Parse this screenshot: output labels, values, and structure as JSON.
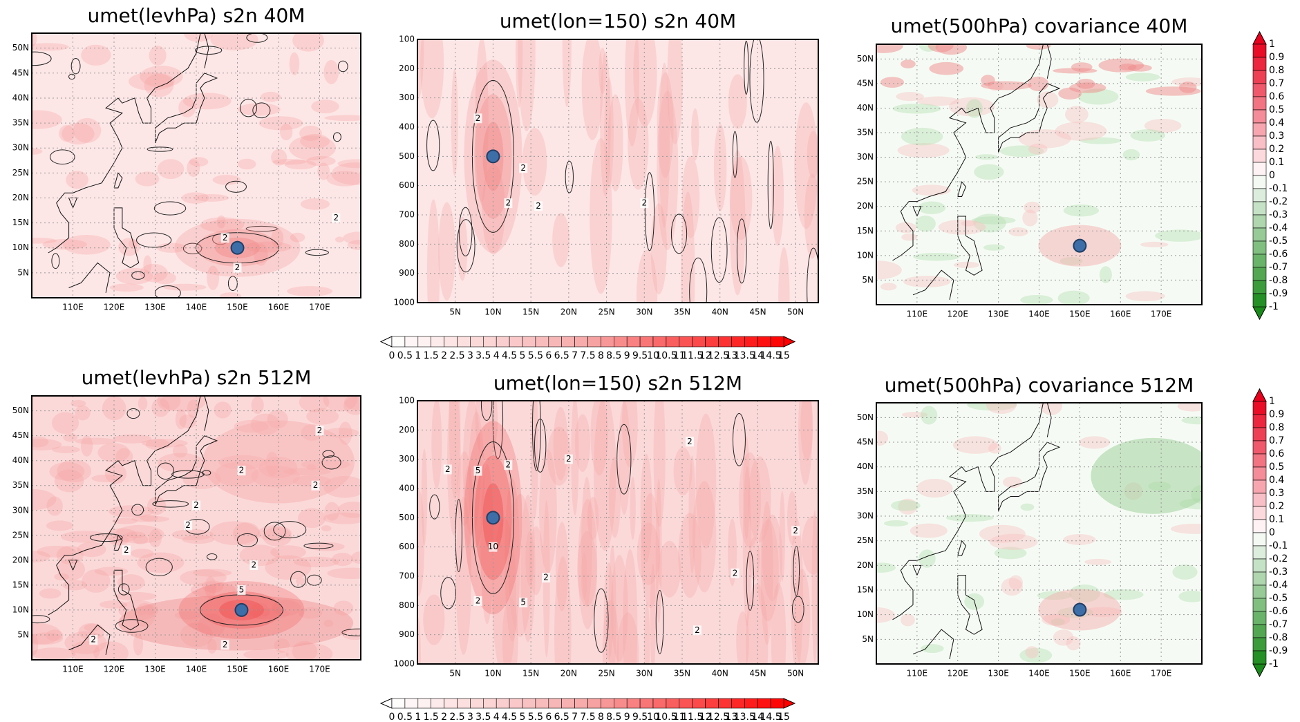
{
  "chart_data": [
    {
      "type": "map",
      "title": "umet(levhPa) s2n 40M",
      "xlim": [
        100,
        180
      ],
      "ylim": [
        0,
        53
      ],
      "xticks": [
        {
          "value": 110,
          "label": "110E"
        },
        {
          "value": 120,
          "label": "120E"
        },
        {
          "value": 130,
          "label": "130E"
        },
        {
          "value": 140,
          "label": "140E"
        },
        {
          "value": 150,
          "label": "150E"
        },
        {
          "value": 160,
          "label": "160E"
        },
        {
          "value": 170,
          "label": "170E"
        }
      ],
      "yticks": [
        {
          "value": 5,
          "label": "5N"
        },
        {
          "value": 10,
          "label": "10N"
        },
        {
          "value": 15,
          "label": "15N"
        },
        {
          "value": 20,
          "label": "20N"
        },
        {
          "value": 25,
          "label": "25N"
        },
        {
          "value": 30,
          "label": "30N"
        },
        {
          "value": 35,
          "label": "35N"
        },
        {
          "value": 40,
          "label": "40N"
        },
        {
          "value": 45,
          "label": "45N"
        },
        {
          "value": 50,
          "label": "50N"
        }
      ],
      "grid": true,
      "marker": {
        "x": 150,
        "y": 10,
        "color": "#3d6ea8"
      },
      "contour_labels": [
        {
          "label": "2",
          "x": 147,
          "y": 12
        },
        {
          "label": "2",
          "x": 150,
          "y": 6
        },
        {
          "label": "2",
          "x": 174,
          "y": 16
        }
      ]
    },
    {
      "type": "contour",
      "title": "umet(lon=150) s2n 40M",
      "xlim": [
        0,
        53
      ],
      "ylim": [
        1000,
        100
      ],
      "xticks": [
        {
          "value": 5,
          "label": "5N"
        },
        {
          "value": 10,
          "label": "10N"
        },
        {
          "value": 15,
          "label": "15N"
        },
        {
          "value": 20,
          "label": "20N"
        },
        {
          "value": 25,
          "label": "25N"
        },
        {
          "value": 30,
          "label": "30N"
        },
        {
          "value": 35,
          "label": "35N"
        },
        {
          "value": 40,
          "label": "40N"
        },
        {
          "value": 45,
          "label": "45N"
        },
        {
          "value": 50,
          "label": "50N"
        }
      ],
      "yticks": [
        100,
        200,
        300,
        400,
        500,
        600,
        700,
        800,
        900,
        1000
      ],
      "grid": true,
      "marker": {
        "x": 10,
        "y": 500,
        "color": "#3d6ea8"
      },
      "contour_labels": [
        {
          "label": "2",
          "x": 8,
          "y": 370
        },
        {
          "label": "2",
          "x": 14,
          "y": 540
        },
        {
          "label": "2",
          "x": 12,
          "y": 660
        },
        {
          "label": "2",
          "x": 16,
          "y": 670
        },
        {
          "label": "2",
          "x": 30,
          "y": 660
        }
      ]
    },
    {
      "type": "map",
      "title": "umet(500hPa) covariance 40M",
      "xlim": [
        100,
        180
      ],
      "ylim": [
        0,
        53
      ],
      "xticks": [
        {
          "value": 110,
          "label": "110E"
        },
        {
          "value": 120,
          "label": "120E"
        },
        {
          "value": 130,
          "label": "130E"
        },
        {
          "value": 140,
          "label": "140E"
        },
        {
          "value": 150,
          "label": "150E"
        },
        {
          "value": 160,
          "label": "160E"
        },
        {
          "value": 170,
          "label": "170E"
        }
      ],
      "yticks": [
        {
          "value": 5,
          "label": "5N"
        },
        {
          "value": 10,
          "label": "10N"
        },
        {
          "value": 15,
          "label": "15N"
        },
        {
          "value": 20,
          "label": "20N"
        },
        {
          "value": 25,
          "label": "25N"
        },
        {
          "value": 30,
          "label": "30N"
        },
        {
          "value": 35,
          "label": "35N"
        },
        {
          "value": 40,
          "label": "40N"
        },
        {
          "value": 45,
          "label": "45N"
        },
        {
          "value": 50,
          "label": "50N"
        }
      ],
      "grid": true,
      "marker": {
        "x": 150,
        "y": 12,
        "color": "#3d6ea8"
      }
    },
    {
      "type": "map",
      "title": "umet(levhPa) s2n 512M",
      "xlim": [
        100,
        180
      ],
      "ylim": [
        0,
        53
      ],
      "xticks": [
        {
          "value": 110,
          "label": "110E"
        },
        {
          "value": 120,
          "label": "120E"
        },
        {
          "value": 130,
          "label": "130E"
        },
        {
          "value": 140,
          "label": "140E"
        },
        {
          "value": 150,
          "label": "150E"
        },
        {
          "value": 160,
          "label": "160E"
        },
        {
          "value": 170,
          "label": "170E"
        }
      ],
      "yticks": [
        {
          "value": 5,
          "label": "5N"
        },
        {
          "value": 10,
          "label": "10N"
        },
        {
          "value": 15,
          "label": "15N"
        },
        {
          "value": 20,
          "label": "20N"
        },
        {
          "value": 25,
          "label": "25N"
        },
        {
          "value": 30,
          "label": "30N"
        },
        {
          "value": 35,
          "label": "35N"
        },
        {
          "value": 40,
          "label": "40N"
        },
        {
          "value": 45,
          "label": "45N"
        },
        {
          "value": 50,
          "label": "50N"
        }
      ],
      "grid": true,
      "marker": {
        "x": 151,
        "y": 10,
        "color": "#3d6ea8"
      },
      "contour_labels": [
        {
          "label": "2",
          "x": 170,
          "y": 46
        },
        {
          "label": "2",
          "x": 151,
          "y": 38
        },
        {
          "label": "2",
          "x": 169,
          "y": 35
        },
        {
          "label": "2",
          "x": 140,
          "y": 31
        },
        {
          "label": "2",
          "x": 138,
          "y": 27
        },
        {
          "label": "2",
          "x": 123,
          "y": 22
        },
        {
          "label": "2",
          "x": 154,
          "y": 19
        },
        {
          "label": "5",
          "x": 151,
          "y": 14
        },
        {
          "label": "2",
          "x": 115,
          "y": 4
        },
        {
          "label": "2",
          "x": 147,
          "y": 3
        }
      ]
    },
    {
      "type": "contour",
      "title": "umet(lon=150) s2n 512M",
      "xlim": [
        0,
        53
      ],
      "ylim": [
        1000,
        100
      ],
      "xticks": [
        {
          "value": 5,
          "label": "5N"
        },
        {
          "value": 10,
          "label": "10N"
        },
        {
          "value": 15,
          "label": "15N"
        },
        {
          "value": 20,
          "label": "20N"
        },
        {
          "value": 25,
          "label": "25N"
        },
        {
          "value": 30,
          "label": "30N"
        },
        {
          "value": 35,
          "label": "35N"
        },
        {
          "value": 40,
          "label": "40N"
        },
        {
          "value": 45,
          "label": "45N"
        },
        {
          "value": 50,
          "label": "50N"
        }
      ],
      "yticks": [
        100,
        200,
        300,
        400,
        500,
        600,
        700,
        800,
        900,
        1000
      ],
      "grid": true,
      "marker": {
        "x": 10,
        "y": 500,
        "color": "#3d6ea8"
      },
      "contour_labels": [
        {
          "label": "2",
          "x": 4,
          "y": 335
        },
        {
          "label": "5",
          "x": 8,
          "y": 340
        },
        {
          "label": "2",
          "x": 12,
          "y": 320
        },
        {
          "label": "2",
          "x": 20,
          "y": 300
        },
        {
          "label": "2",
          "x": 36,
          "y": 240
        },
        {
          "label": "10",
          "x": 10,
          "y": 600
        },
        {
          "label": "2",
          "x": 17,
          "y": 705
        },
        {
          "label": "5",
          "x": 14,
          "y": 790
        },
        {
          "label": "2",
          "x": 8,
          "y": 785
        },
        {
          "label": "2",
          "x": 42,
          "y": 690
        },
        {
          "label": "2",
          "x": 37,
          "y": 885
        },
        {
          "label": "2",
          "x": 50,
          "y": 545
        }
      ]
    },
    {
      "type": "map",
      "title": "umet(500hPa) covariance 512M",
      "xlim": [
        100,
        180
      ],
      "ylim": [
        0,
        53
      ],
      "xticks": [
        {
          "value": 110,
          "label": "110E"
        },
        {
          "value": 120,
          "label": "120E"
        },
        {
          "value": 130,
          "label": "130E"
        },
        {
          "value": 140,
          "label": "140E"
        },
        {
          "value": 150,
          "label": "150E"
        },
        {
          "value": 160,
          "label": "160E"
        },
        {
          "value": 170,
          "label": "170E"
        }
      ],
      "yticks": [
        {
          "value": 5,
          "label": "5N"
        },
        {
          "value": 10,
          "label": "10N"
        },
        {
          "value": 15,
          "label": "15N"
        },
        {
          "value": 20,
          "label": "20N"
        },
        {
          "value": 25,
          "label": "25N"
        },
        {
          "value": 30,
          "label": "30N"
        },
        {
          "value": 35,
          "label": "35N"
        },
        {
          "value": 40,
          "label": "40N"
        },
        {
          "value": 45,
          "label": "45N"
        },
        {
          "value": 50,
          "label": "50N"
        }
      ],
      "grid": true,
      "marker": {
        "x": 150,
        "y": 11,
        "color": "#3d6ea8"
      }
    },
    {
      "type": "colorbar",
      "orientation": "horizontal",
      "levels": [
        0,
        0.5,
        1,
        1.5,
        2,
        2.5,
        3,
        3.5,
        4,
        4.5,
        5,
        5.5,
        6,
        6.5,
        7,
        7.5,
        8,
        8.5,
        9,
        9.5,
        10,
        10.5,
        11,
        11.5,
        12,
        12.5,
        13,
        13.5,
        14,
        14.5,
        15
      ],
      "colors": [
        "#ffffff",
        "#f7a8a8",
        "#ff0000"
      ]
    },
    {
      "type": "colorbar",
      "orientation": "horizontal",
      "levels": [
        0,
        0.5,
        1,
        1.5,
        2,
        2.5,
        3,
        3.5,
        4,
        4.5,
        5,
        5.5,
        6,
        6.5,
        7,
        7.5,
        8,
        8.5,
        9,
        9.5,
        10,
        10.5,
        11,
        11.5,
        12,
        12.5,
        13,
        13.5,
        14,
        14.5,
        15
      ],
      "colors": [
        "#ffffff",
        "#f7a8a8",
        "#ff0000"
      ]
    },
    {
      "type": "colorbar",
      "orientation": "vertical",
      "levels": [
        1,
        0.9,
        0.8,
        0.7,
        0.6,
        0.5,
        0.4,
        0.3,
        0.2,
        0.1,
        0,
        -0.1,
        -0.2,
        -0.3,
        -0.4,
        -0.5,
        -0.6,
        -0.7,
        -0.8,
        -0.9,
        -1
      ],
      "colors": [
        "#e8001c",
        "#ffffff",
        "#1a8a1a"
      ]
    },
    {
      "type": "colorbar",
      "orientation": "vertical",
      "levels": [
        1,
        0.9,
        0.8,
        0.7,
        0.6,
        0.5,
        0.4,
        0.3,
        0.2,
        0.1,
        0,
        -0.1,
        -0.2,
        -0.3,
        -0.4,
        -0.5,
        -0.6,
        -0.7,
        -0.8,
        -0.9,
        -1
      ],
      "colors": [
        "#e8001c",
        "#ffffff",
        "#1a8a1a"
      ]
    }
  ]
}
